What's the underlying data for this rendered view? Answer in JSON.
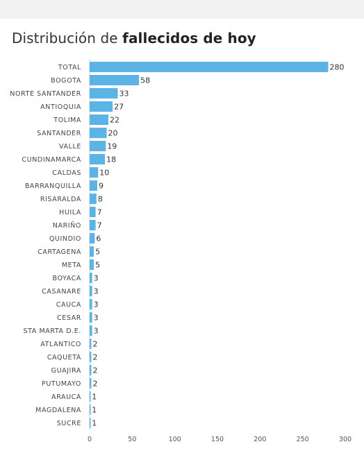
{
  "title": {
    "prefix": "Distribución de ",
    "bold": "fallecidos de hoy"
  },
  "colors": {
    "bar": "#5bb4e5",
    "background": "#ffffff",
    "page": "#f2f2f2"
  },
  "chart_data": {
    "type": "bar",
    "orientation": "horizontal",
    "title": "Distribución de fallecidos de hoy",
    "categories": [
      "TOTAL",
      "BOGOTA",
      "NORTE SANTANDER",
      "ANTIOQUIA",
      "TOLIMA",
      "SANTANDER",
      "VALLE",
      "CUNDINAMARCA",
      "CALDAS",
      "BARRANQUILLA",
      "RISARALDA",
      "HUILA",
      "NARIÑO",
      "QUINDIO",
      "CARTAGENA",
      "META",
      "BOYACA",
      "CASANARE",
      "CAUCA",
      "CESAR",
      "STA MARTA D.E.",
      "ATLANTICO",
      "CAQUETA",
      "GUAJIRA",
      "PUTUMAYO",
      "ARAUCA",
      "MAGDALENA",
      "SUCRE"
    ],
    "values": [
      280,
      58,
      33,
      27,
      22,
      20,
      19,
      18,
      10,
      9,
      8,
      7,
      7,
      6,
      5,
      5,
      3,
      3,
      3,
      3,
      3,
      2,
      2,
      2,
      2,
      1,
      1,
      1
    ],
    "xlim": [
      0,
      300
    ],
    "xticks": [
      0,
      50,
      100,
      150,
      200,
      250,
      300
    ],
    "data_labels": true,
    "grid": false,
    "legend": "none"
  }
}
